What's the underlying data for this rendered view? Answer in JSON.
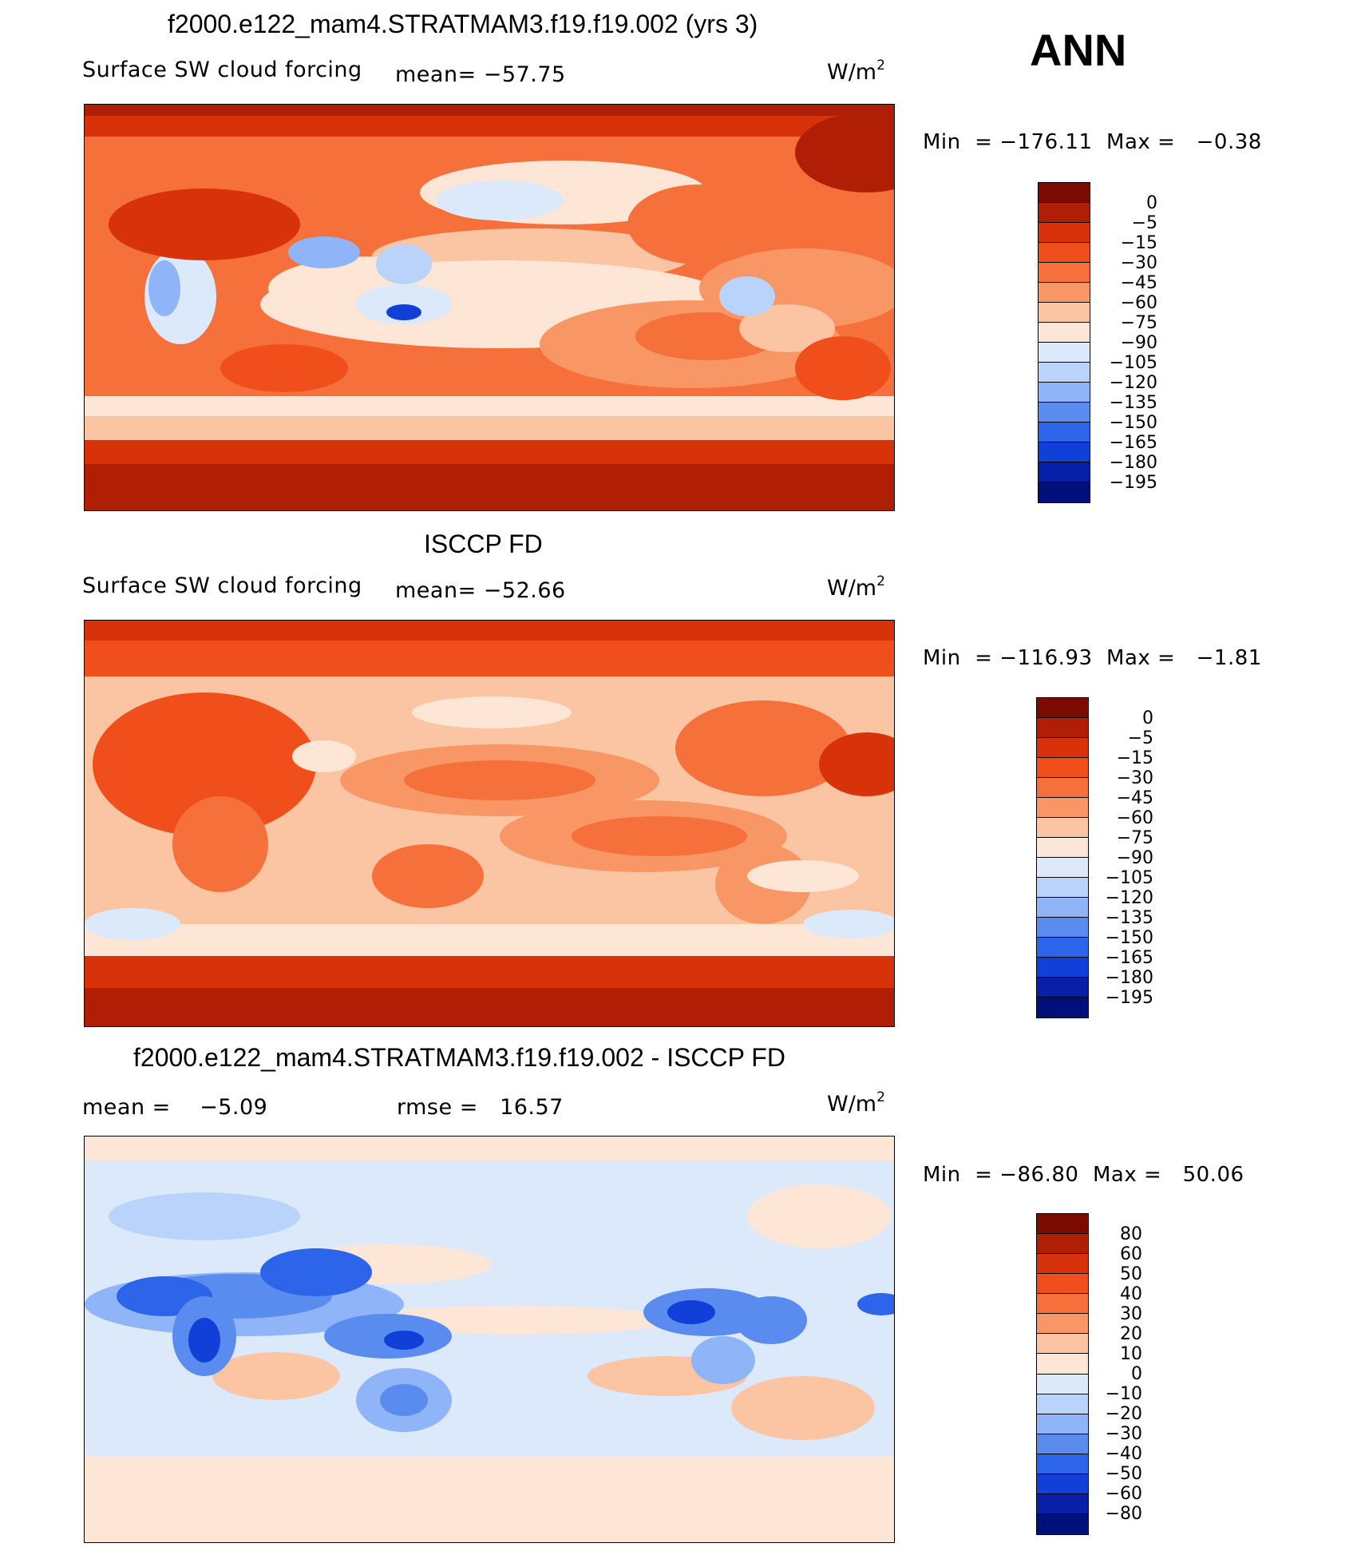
{
  "season": "ANN",
  "units": "W/m",
  "units_exp": "2",
  "panels": [
    {
      "title": "f2000.e122_mam4.STRATMAM3.f19.f19.002 (yrs 3)",
      "left_label": "Surface SW cloud forcing",
      "mean_label": "mean=",
      "mean_value": "−57.75",
      "min_label": "Min",
      "min_value": "−176.11",
      "max_label": "Max",
      "max_value": "−0.38",
      "colorbar_labels": [
        "0",
        "−5",
        "−15",
        "−30",
        "−45",
        "−60",
        "−75",
        "−90",
        "−105",
        "−120",
        "−135",
        "−150",
        "−165",
        "−180",
        "−195"
      ]
    },
    {
      "title": "ISCCP FD",
      "left_label": "Surface SW cloud forcing",
      "mean_label": "mean=",
      "mean_value": "−52.66",
      "min_label": "Min",
      "min_value": "−116.93",
      "max_label": "Max",
      "max_value": "−1.81",
      "colorbar_labels": [
        "0",
        "−5",
        "−15",
        "−30",
        "−45",
        "−60",
        "−75",
        "−90",
        "−105",
        "−120",
        "−135",
        "−150",
        "−165",
        "−180",
        "−195"
      ]
    },
    {
      "title": "f2000.e122_mam4.STRATMAM3.f19.f19.002 - ISCCP FD",
      "mean_label": "mean =",
      "mean_value": "−5.09",
      "rmse_label": "rmse =",
      "rmse_value": "16.57",
      "min_label": "Min",
      "min_value": "−86.80",
      "max_label": "Max",
      "max_value": "50.06",
      "colorbar_labels": [
        "80",
        "60",
        "50",
        "40",
        "30",
        "20",
        "10",
        "0",
        "−10",
        "−20",
        "−30",
        "−40",
        "−50",
        "−60",
        "−80"
      ]
    }
  ],
  "colors": {
    "scale_16": [
      "#7b0a00",
      "#b01e05",
      "#d8320a",
      "#f04e1a",
      "#f5703a",
      "#f89665",
      "#fbc4a3",
      "#fde6d5",
      "#dbe9fb",
      "#b9d3fb",
      "#8fb4f7",
      "#5a8cf0",
      "#2c64ea",
      "#1040d8",
      "#0820a8",
      "#00107a"
    ]
  }
}
